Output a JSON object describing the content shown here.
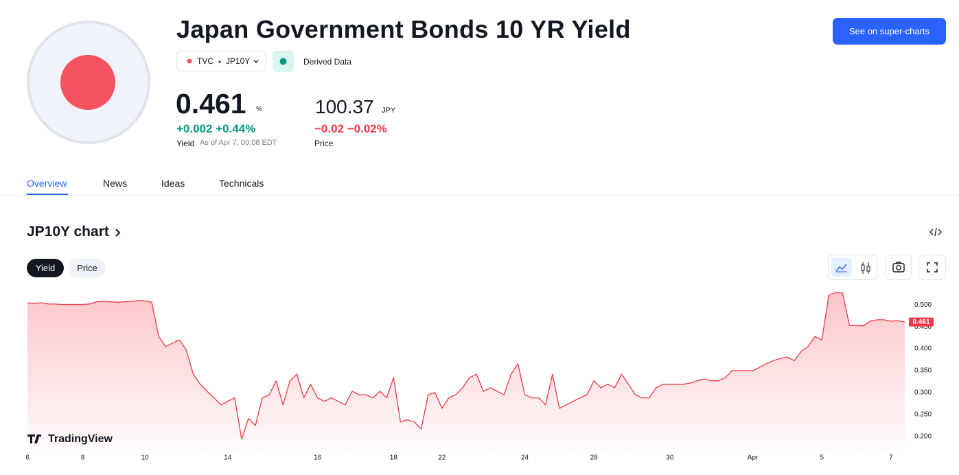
{
  "header": {
    "title": "Japan Government Bonds 10 YR Yield",
    "exchange": "TVC",
    "symbol": "JP10Y",
    "derived": "Derived Data",
    "button": "See on super-charts"
  },
  "quote": {
    "yield_value": "0.461",
    "yield_unit": "%",
    "yield_change": "+0.002",
    "yield_change_pct": "+0.44%",
    "yield_label": "Yield",
    "as_of": "As of Apr 7, 00:08 EDT",
    "price_value": "100.37",
    "price_unit": "JPY",
    "price_change": "−0.02",
    "price_change_pct": "−0.02%",
    "price_label": "Price"
  },
  "tabs": [
    "Overview",
    "News",
    "Ideas",
    "Technicals"
  ],
  "chart_section": {
    "title": "JP10Y chart",
    "toggles": [
      "Yield",
      "Price"
    ],
    "watermark": "TradingView"
  },
  "chart_data": {
    "type": "area",
    "color": "#f23645",
    "categories": [
      "6",
      null,
      null,
      null,
      null,
      null,
      null,
      null,
      "8",
      null,
      null,
      null,
      null,
      null,
      null,
      null,
      null,
      "10",
      null,
      null,
      null,
      null,
      null,
      null,
      null,
      null,
      null,
      null,
      null,
      "14",
      null,
      null,
      null,
      null,
      null,
      null,
      null,
      null,
      null,
      null,
      null,
      null,
      "16",
      null,
      null,
      null,
      null,
      null,
      null,
      null,
      null,
      null,
      null,
      "18",
      null,
      null,
      null,
      null,
      null,
      null,
      "22",
      null,
      null,
      null,
      null,
      null,
      null,
      null,
      null,
      null,
      null,
      null,
      "24",
      null,
      null,
      null,
      null,
      null,
      null,
      null,
      null,
      null,
      "28",
      null,
      null,
      null,
      null,
      null,
      null,
      null,
      null,
      null,
      null,
      "30",
      null,
      null,
      null,
      null,
      null,
      null,
      null,
      null,
      null,
      null,
      null,
      "Apr",
      null,
      null,
      null,
      null,
      null,
      null,
      null,
      null,
      null,
      "5",
      null,
      null,
      null,
      null,
      null,
      null,
      null,
      null,
      null,
      "7",
      null,
      null
    ],
    "values": [
      0.505,
      0.503,
      0.505,
      0.502,
      0.502,
      0.501,
      0.501,
      0.501,
      0.501,
      0.502,
      0.507,
      0.508,
      0.507,
      0.506,
      0.507,
      0.508,
      0.51,
      0.509,
      0.506,
      0.428,
      0.405,
      0.413,
      0.42,
      0.397,
      0.342,
      0.319,
      0.303,
      0.288,
      0.272,
      0.28,
      0.288,
      0.194,
      0.241,
      0.225,
      0.288,
      0.295,
      0.327,
      0.272,
      0.327,
      0.342,
      0.288,
      0.319,
      0.288,
      0.28,
      0.288,
      0.28,
      0.272,
      0.303,
      0.295,
      0.295,
      0.288,
      0.303,
      0.288,
      0.334,
      0.233,
      0.238,
      0.233,
      0.217,
      0.295,
      0.3,
      0.264,
      0.288,
      0.295,
      0.311,
      0.334,
      0.342,
      0.303,
      0.311,
      0.303,
      0.295,
      0.342,
      0.366,
      0.295,
      0.288,
      0.288,
      0.272,
      0.342,
      0.264,
      0.272,
      0.28,
      0.288,
      0.295,
      0.327,
      0.311,
      0.319,
      0.311,
      0.342,
      0.319,
      0.295,
      0.288,
      0.288,
      0.311,
      0.319,
      0.319,
      0.319,
      0.319,
      0.322,
      0.327,
      0.331,
      0.327,
      0.327,
      0.334,
      0.35,
      0.35,
      0.35,
      0.35,
      0.358,
      0.366,
      0.373,
      0.378,
      0.381,
      0.373,
      0.394,
      0.405,
      0.428,
      0.42,
      0.522,
      0.528,
      0.527,
      0.453,
      0.453,
      0.452,
      0.463,
      0.466,
      0.466,
      0.463,
      0.464,
      0.461
    ],
    "ylim": [
      0.17,
      0.53
    ],
    "yticks": [
      {
        "value": 0.2,
        "label": "0.200"
      },
      {
        "value": 0.25,
        "label": "0.250"
      },
      {
        "value": 0.3,
        "label": "0.300"
      },
      {
        "value": 0.35,
        "label": "0.350"
      },
      {
        "value": 0.4,
        "label": "0.400"
      },
      {
        "value": 0.45,
        "label": "0.450"
      },
      {
        "value": 0.5,
        "label": "0.500"
      }
    ],
    "last_value": {
      "value": 0.461,
      "label": "0.461"
    },
    "grid": false
  }
}
